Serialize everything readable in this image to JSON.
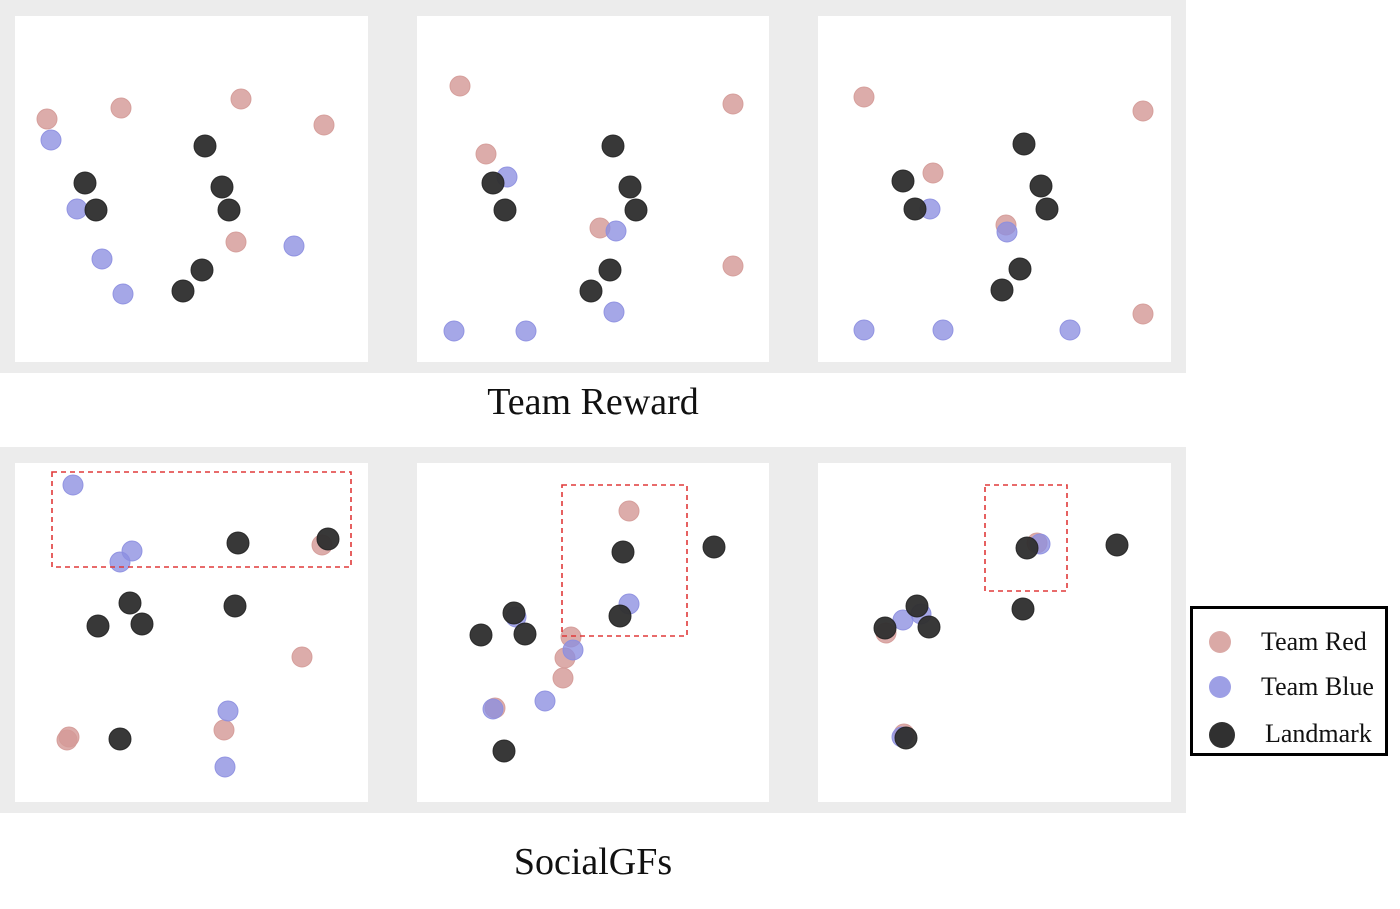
{
  "colors": {
    "red": "#d49a97",
    "blue": "#8c8ee0",
    "landmark": "#303030",
    "highlight_box": "#e03a3a"
  },
  "rows": [
    {
      "label": "Team Reward",
      "panels": [
        {
          "red": [
            [
              47,
              119
            ],
            [
              121,
              108
            ],
            [
              241,
              99
            ],
            [
              324,
              125
            ],
            [
              236,
              242
            ]
          ],
          "blue": [
            [
              51,
              140
            ],
            [
              77,
              209
            ],
            [
              102,
              259
            ],
            [
              123,
              294
            ],
            [
              294,
              246
            ]
          ],
          "landmark": [
            [
              205,
              146
            ],
            [
              85,
              183
            ],
            [
              96,
              210
            ],
            [
              222,
              187
            ],
            [
              229,
              210
            ],
            [
              202,
              270
            ],
            [
              183,
              291
            ]
          ]
        },
        {
          "red": [
            [
              460,
              86
            ],
            [
              486,
              154
            ],
            [
              733,
              104
            ],
            [
              600,
              228
            ],
            [
              733,
              266
            ]
          ],
          "blue": [
            [
              507,
              177
            ],
            [
              616,
              231
            ],
            [
              614,
              312
            ],
            [
              454,
              331
            ],
            [
              526,
              331
            ]
          ],
          "landmark": [
            [
              613,
              146
            ],
            [
              493,
              183
            ],
            [
              505,
              210
            ],
            [
              630,
              187
            ],
            [
              636,
              210
            ],
            [
              610,
              270
            ],
            [
              591,
              291
            ]
          ]
        },
        {
          "red": [
            [
              864,
              97
            ],
            [
              933,
              173
            ],
            [
              1143,
              111
            ],
            [
              1006,
              225
            ],
            [
              1143,
              314
            ]
          ],
          "blue": [
            [
              930,
              209
            ],
            [
              1007,
              232
            ],
            [
              864,
              330
            ],
            [
              943,
              330
            ],
            [
              1070,
              330
            ]
          ],
          "landmark": [
            [
              1024,
              144
            ],
            [
              903,
              181
            ],
            [
              915,
              209
            ],
            [
              1041,
              186
            ],
            [
              1047,
              209
            ],
            [
              1020,
              269
            ],
            [
              1002,
              290
            ]
          ]
        }
      ]
    },
    {
      "label": "SocialGFs",
      "panels": [
        {
          "red": [
            [
              322,
              545
            ],
            [
              302,
              657
            ],
            [
              67,
              740
            ],
            [
              69,
              737
            ],
            [
              224,
              730
            ]
          ],
          "blue": [
            [
              73,
              485
            ],
            [
              132,
              551
            ],
            [
              120,
              562
            ],
            [
              228,
              711
            ],
            [
              225,
              767
            ]
          ],
          "landmark": [
            [
              238,
              543
            ],
            [
              328,
              539
            ],
            [
              130,
              603
            ],
            [
              98,
              626
            ],
            [
              142,
              624
            ],
            [
              235,
              606
            ],
            [
              120,
              739
            ]
          ],
          "box": [
            52,
            472,
            351,
            567
          ]
        },
        {
          "red": [
            [
              629,
              511
            ],
            [
              571,
              637
            ],
            [
              565,
              658
            ],
            [
              563,
              678
            ],
            [
              495,
              708
            ]
          ],
          "blue": [
            [
              629,
              604
            ],
            [
              573,
              650
            ],
            [
              545,
              701
            ],
            [
              493,
              709
            ],
            [
              516,
              617
            ]
          ],
          "landmark": [
            [
              623,
              552
            ],
            [
              714,
              547
            ],
            [
              620,
              616
            ],
            [
              514,
              613
            ],
            [
              481,
              635
            ],
            [
              525,
              634
            ],
            [
              504,
              751
            ]
          ],
          "box": [
            562,
            485,
            687,
            636
          ]
        },
        {
          "red": [
            [
              1037,
              543
            ],
            [
              886,
              633
            ],
            [
              904,
              734
            ]
          ],
          "blue": [
            [
              1040,
              544
            ],
            [
              921,
              614
            ],
            [
              903,
              620
            ],
            [
              902,
              737
            ]
          ],
          "landmark": [
            [
              1027,
              548
            ],
            [
              1117,
              545
            ],
            [
              1023,
              609
            ],
            [
              917,
              606
            ],
            [
              885,
              628
            ],
            [
              929,
              627
            ],
            [
              906,
              738
            ]
          ],
          "box": [
            985,
            485,
            1067,
            591
          ]
        }
      ]
    }
  ],
  "legend": {
    "items": [
      {
        "key": "red",
        "label": "Team Red"
      },
      {
        "key": "blue",
        "label": "Team Blue"
      },
      {
        "key": "landmark",
        "label": "Landmark"
      }
    ]
  }
}
